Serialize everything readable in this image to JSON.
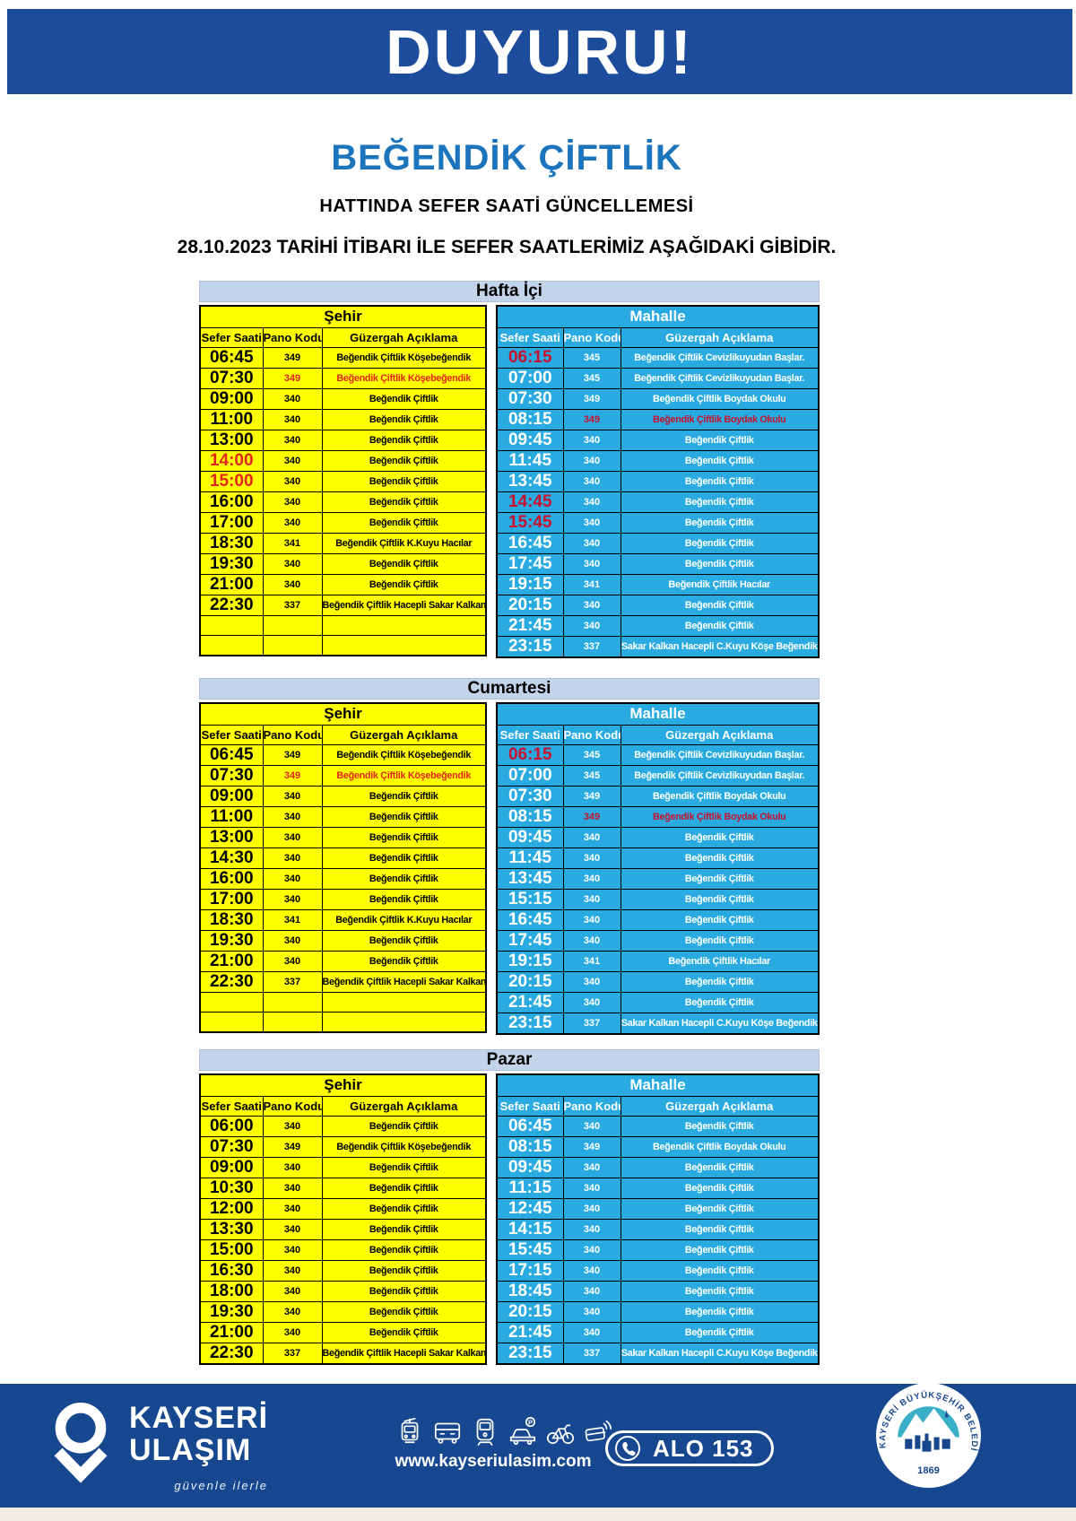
{
  "page": {
    "banner_text": "DUYURU!",
    "title": "BEĞENDİK ÇİFTLİK",
    "subtitle": "HATTINDA SEFER SAATİ GÜNCELLEMESİ",
    "date_line": "28.10.2023 TARİHİ İTİBARI İLE SEFER SAATLERİMİZ AŞAĞIDAKİ GİBİDİR."
  },
  "colors": {
    "banner_blue": "#1E4C9C",
    "footer_blue": "#16478F",
    "title_blue": "#1C75BC",
    "table_yellow": "#FFFF00",
    "table_cyan": "#29ABE2",
    "day_band_blue": "#C3D3E9",
    "alert_red_on_yellow": "#E1251B",
    "alert_red_on_cyan": "#C9102E"
  },
  "columns": {
    "time": "Sefer Saati",
    "code": "Pano Kodu",
    "route": "Güzergah Açıklama"
  },
  "side_headers": {
    "left": "Şehir",
    "right": "Mahalle"
  },
  "tables": [
    {
      "day": "Hafta İçi",
      "sehir": [
        {
          "time": "06:45",
          "code": "349",
          "route": "Beğendik Çiftlik Köşebeğendik",
          "red": []
        },
        {
          "time": "07:30",
          "code": "349",
          "route": "Beğendik Çiftlik Köşebeğendik",
          "red": [
            "code",
            "route"
          ]
        },
        {
          "time": "09:00",
          "code": "340",
          "route": "Beğendik Çiftlik",
          "red": []
        },
        {
          "time": "11:00",
          "code": "340",
          "route": "Beğendik Çiftlik",
          "red": []
        },
        {
          "time": "13:00",
          "code": "340",
          "route": "Beğendik Çiftlik",
          "red": []
        },
        {
          "time": "14:00",
          "code": "340",
          "route": "Beğendik Çiftlik",
          "red": [
            "time"
          ]
        },
        {
          "time": "15:00",
          "code": "340",
          "route": "Beğendik Çiftlik",
          "red": [
            "time"
          ]
        },
        {
          "time": "16:00",
          "code": "340",
          "route": "Beğendik Çiftlik",
          "red": []
        },
        {
          "time": "17:00",
          "code": "340",
          "route": "Beğendik Çiftlik",
          "red": []
        },
        {
          "time": "18:30",
          "code": "341",
          "route": "Beğendik Çiftlik K.Kuyu Hacılar",
          "red": []
        },
        {
          "time": "19:30",
          "code": "340",
          "route": "Beğendik Çiftlik",
          "red": []
        },
        {
          "time": "21:00",
          "code": "340",
          "route": "Beğendik Çiftlik",
          "red": []
        },
        {
          "time": "22:30",
          "code": "337",
          "route": "Beğendik Çiftlik Hacepli Sakar Kalkan",
          "red": []
        },
        {
          "time": "",
          "code": "",
          "route": "",
          "red": []
        },
        {
          "time": "",
          "code": "",
          "route": "",
          "red": []
        }
      ],
      "mahalle": [
        {
          "time": "06:15",
          "code": "345",
          "route": "Beğendik Çiftlik Cevizlikuyudan Başlar.",
          "red": [
            "time"
          ]
        },
        {
          "time": "07:00",
          "code": "345",
          "route": "Beğendik Çiftlik Cevizlikuyudan Başlar.",
          "red": []
        },
        {
          "time": "07:30",
          "code": "349",
          "route": "Beğendik Çiftlik Boydak Okulu",
          "red": []
        },
        {
          "time": "08:15",
          "code": "349",
          "route": "Beğendik Çiftlik Boydak Okulu",
          "red": [
            "code",
            "route"
          ]
        },
        {
          "time": "09:45",
          "code": "340",
          "route": "Beğendik Çiftlik",
          "red": []
        },
        {
          "time": "11:45",
          "code": "340",
          "route": "Beğendik Çiftlik",
          "red": []
        },
        {
          "time": "13:45",
          "code": "340",
          "route": "Beğendik Çiftlik",
          "red": []
        },
        {
          "time": "14:45",
          "code": "340",
          "route": "Beğendik Çiftlik",
          "red": [
            "time"
          ]
        },
        {
          "time": "15:45",
          "code": "340",
          "route": "Beğendik Çiftlik",
          "red": [
            "time"
          ]
        },
        {
          "time": "16:45",
          "code": "340",
          "route": "Beğendik Çiftlik",
          "red": []
        },
        {
          "time": "17:45",
          "code": "340",
          "route": "Beğendik Çiftlik",
          "red": []
        },
        {
          "time": "19:15",
          "code": "341",
          "route": "Beğendik Çiftlik Hacılar",
          "red": []
        },
        {
          "time": "20:15",
          "code": "340",
          "route": "Beğendik Çiftlik",
          "red": []
        },
        {
          "time": "21:45",
          "code": "340",
          "route": "Beğendik Çiftlik",
          "red": []
        },
        {
          "time": "23:15",
          "code": "337",
          "route": "Sakar Kalkan Hacepli C.Kuyu Köşe Beğendik",
          "red": []
        }
      ]
    },
    {
      "day": "Cumartesi",
      "sehir": [
        {
          "time": "06:45",
          "code": "349",
          "route": "Beğendik Çiftlik Köşebeğendik",
          "red": []
        },
        {
          "time": "07:30",
          "code": "349",
          "route": "Beğendik Çiftlik Köşebeğendik",
          "red": [
            "code",
            "route"
          ]
        },
        {
          "time": "09:00",
          "code": "340",
          "route": "Beğendik Çiftlik",
          "red": []
        },
        {
          "time": "11:00",
          "code": "340",
          "route": "Beğendik Çiftlik",
          "red": []
        },
        {
          "time": "13:00",
          "code": "340",
          "route": "Beğendik Çiftlik",
          "red": []
        },
        {
          "time": "14:30",
          "code": "340",
          "route": "Beğendik Çiftlik",
          "red": []
        },
        {
          "time": "16:00",
          "code": "340",
          "route": "Beğendik Çiftlik",
          "red": []
        },
        {
          "time": "17:00",
          "code": "340",
          "route": "Beğendik Çiftlik",
          "red": []
        },
        {
          "time": "18:30",
          "code": "341",
          "route": "Beğendik Çiftlik K.Kuyu Hacılar",
          "red": []
        },
        {
          "time": "19:30",
          "code": "340",
          "route": "Beğendik Çiftlik",
          "red": []
        },
        {
          "time": "21:00",
          "code": "340",
          "route": "Beğendik Çiftlik",
          "red": []
        },
        {
          "time": "22:30",
          "code": "337",
          "route": "Beğendik Çiftlik Hacepli Sakar Kalkan",
          "red": []
        },
        {
          "time": "",
          "code": "",
          "route": "",
          "red": []
        },
        {
          "time": "",
          "code": "",
          "route": "",
          "red": []
        }
      ],
      "mahalle": [
        {
          "time": "06:15",
          "code": "345",
          "route": "Beğendik Çiftlik Cevizlikuyudan Başlar.",
          "red": [
            "time"
          ]
        },
        {
          "time": "07:00",
          "code": "345",
          "route": "Beğendik Çiftlik Cevizlikuyudan Başlar.",
          "red": []
        },
        {
          "time": "07:30",
          "code": "349",
          "route": "Beğendik Çiftlik Boydak Okulu",
          "red": []
        },
        {
          "time": "08:15",
          "code": "349",
          "route": "Beğendik Çiftlik Boydak Okulu",
          "red": [
            "code",
            "route"
          ]
        },
        {
          "time": "09:45",
          "code": "340",
          "route": "Beğendik Çiftlik",
          "red": []
        },
        {
          "time": "11:45",
          "code": "340",
          "route": "Beğendik Çiftlik",
          "red": []
        },
        {
          "time": "13:45",
          "code": "340",
          "route": "Beğendik Çiftlik",
          "red": []
        },
        {
          "time": "15:15",
          "code": "340",
          "route": "Beğendik Çiftlik",
          "red": []
        },
        {
          "time": "16:45",
          "code": "340",
          "route": "Beğendik Çiftlik",
          "red": []
        },
        {
          "time": "17:45",
          "code": "340",
          "route": "Beğendik Çiftlik",
          "red": []
        },
        {
          "time": "19:15",
          "code": "341",
          "route": "Beğendik Çiftlik Hacılar",
          "red": []
        },
        {
          "time": "20:15",
          "code": "340",
          "route": "Beğendik Çiftlik",
          "red": []
        },
        {
          "time": "21:45",
          "code": "340",
          "route": "Beğendik Çiftlik",
          "red": []
        },
        {
          "time": "23:15",
          "code": "337",
          "route": "Sakar Kalkan Hacepli C.Kuyu Köşe Beğendik",
          "red": []
        }
      ]
    },
    {
      "day": "Pazar",
      "sehir": [
        {
          "time": "06:00",
          "code": "340",
          "route": "Beğendik Çiftlik",
          "red": []
        },
        {
          "time": "07:30",
          "code": "349",
          "route": "Beğendik Çiftlik Köşebeğendik",
          "red": []
        },
        {
          "time": "09:00",
          "code": "340",
          "route": "Beğendik Çiftlik",
          "red": []
        },
        {
          "time": "10:30",
          "code": "340",
          "route": "Beğendik Çiftlik",
          "red": []
        },
        {
          "time": "12:00",
          "code": "340",
          "route": "Beğendik Çiftlik",
          "red": []
        },
        {
          "time": "13:30",
          "code": "340",
          "route": "Beğendik Çiftlik",
          "red": []
        },
        {
          "time": "15:00",
          "code": "340",
          "route": "Beğendik Çiftlik",
          "red": []
        },
        {
          "time": "16:30",
          "code": "340",
          "route": "Beğendik Çiftlik",
          "red": []
        },
        {
          "time": "18:00",
          "code": "340",
          "route": "Beğendik Çiftlik",
          "red": []
        },
        {
          "time": "19:30",
          "code": "340",
          "route": "Beğendik Çiftlik",
          "red": []
        },
        {
          "time": "21:00",
          "code": "340",
          "route": "Beğendik Çiftlik",
          "red": []
        },
        {
          "time": "22:30",
          "code": "337",
          "route": "Beğendik Çiftlik Hacepli Sakar Kalkan",
          "red": []
        }
      ],
      "mahalle": [
        {
          "time": "06:45",
          "code": "340",
          "route": "Beğendik Çiftlik",
          "red": []
        },
        {
          "time": "08:15",
          "code": "349",
          "route": "Beğendik Çiftlik Boydak Okulu",
          "red": []
        },
        {
          "time": "09:45",
          "code": "340",
          "route": "Beğendik Çiftlik",
          "red": []
        },
        {
          "time": "11:15",
          "code": "340",
          "route": "Beğendik Çiftlik",
          "red": []
        },
        {
          "time": "12:45",
          "code": "340",
          "route": "Beğendik Çiftlik",
          "red": []
        },
        {
          "time": "14:15",
          "code": "340",
          "route": "Beğendik Çiftlik",
          "red": []
        },
        {
          "time": "15:45",
          "code": "340",
          "route": "Beğendik Çiftlik",
          "red": []
        },
        {
          "time": "17:15",
          "code": "340",
          "route": "Beğendik Çiftlik",
          "red": []
        },
        {
          "time": "18:45",
          "code": "340",
          "route": "Beğendik Çiftlik",
          "red": []
        },
        {
          "time": "20:15",
          "code": "340",
          "route": "Beğendik Çiftlik",
          "red": []
        },
        {
          "time": "21:45",
          "code": "340",
          "route": "Beğendik Çiftlik",
          "red": []
        },
        {
          "time": "23:15",
          "code": "337",
          "route": "Sakar Kalkan Hacepli C.Kuyu Köşe Beğendik",
          "red": []
        }
      ]
    }
  ],
  "footer": {
    "brand_line1": "KAYSERİ",
    "brand_line2": "ULAŞIM",
    "tagline": "güvenle ilerle",
    "website": "www.kayseriulasim.com",
    "phone_label": "ALO 153",
    "badge_text": "KAYSERİ BÜYÜKŞEHİR BELEDİYESİ",
    "badge_year": "1869",
    "transport_icons": [
      "tram-icon",
      "bus-icon",
      "train-icon",
      "car-parking-icon",
      "bicycle-icon",
      "contactless-card-icon"
    ]
  }
}
